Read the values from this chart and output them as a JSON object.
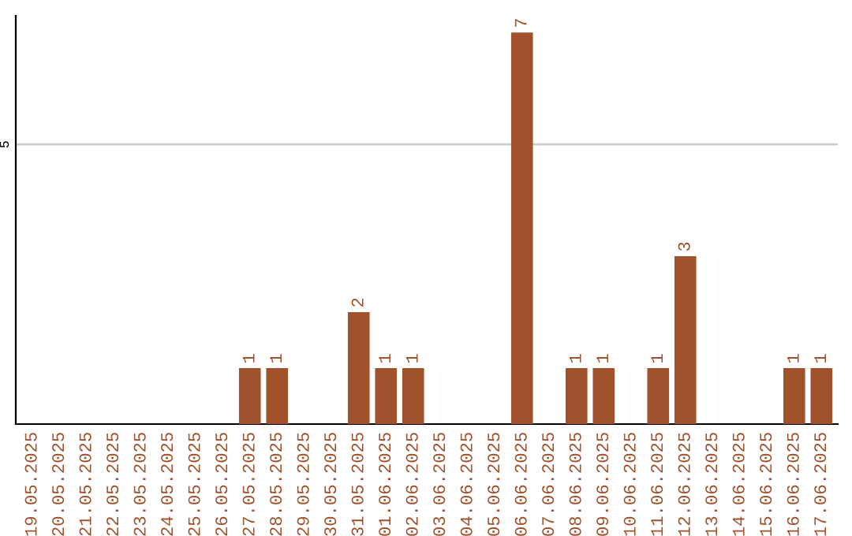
{
  "chart_data": {
    "type": "bar",
    "categories": [
      "19.05.2025",
      "20.05.2025",
      "21.05.2025",
      "22.05.2025",
      "23.05.2025",
      "24.05.2025",
      "25.05.2025",
      "26.05.2025",
      "27.05.2025",
      "28.05.2025",
      "29.05.2025",
      "30.05.2025",
      "31.05.2025",
      "01.06.2025",
      "02.06.2025",
      "03.06.2025",
      "04.06.2025",
      "05.06.2025",
      "06.06.2025",
      "07.06.2025",
      "08.06.2025",
      "09.06.2025",
      "10.06.2025",
      "11.06.2025",
      "12.06.2025",
      "13.06.2025",
      "14.06.2025",
      "15.06.2025",
      "16.06.2025",
      "17.06.2025"
    ],
    "values": [
      0,
      0,
      0,
      0,
      0,
      0,
      0,
      0,
      1,
      1,
      0,
      0,
      2,
      1,
      1,
      0,
      0,
      0,
      7,
      0,
      1,
      1,
      0,
      1,
      3,
      0,
      0,
      0,
      1,
      1
    ],
    "value_labels": [
      null,
      null,
      null,
      null,
      null,
      null,
      null,
      null,
      "1",
      "1",
      null,
      null,
      "2",
      "1",
      "1",
      null,
      null,
      null,
      "7",
      null,
      "1",
      "1",
      null,
      "1",
      "3",
      null,
      null,
      null,
      "1",
      "1"
    ],
    "color": "#a0522d",
    "ylim": [
      0,
      7.3
    ],
    "yticks": [
      5
    ],
    "grid": "y"
  }
}
